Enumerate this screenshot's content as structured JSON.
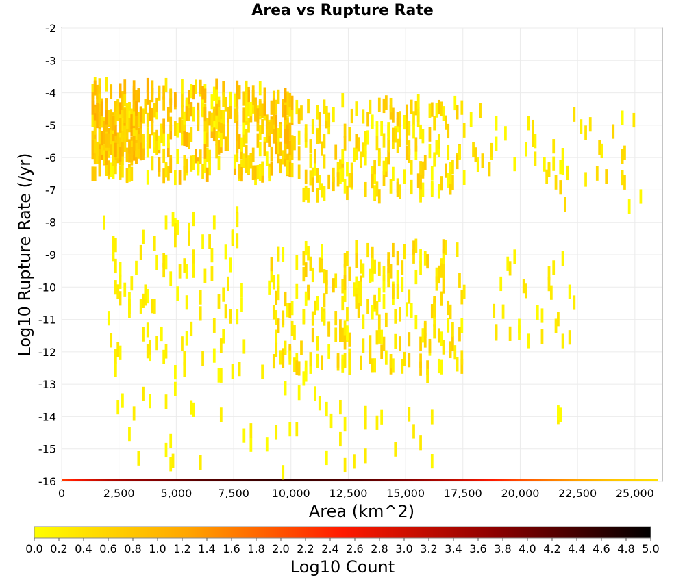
{
  "chart_data": {
    "type": "heatmap",
    "title": "Area vs Rupture Rate",
    "xlabel": "Area (km^2)",
    "ylabel": "Log10 Rupture Rate (/yr)",
    "xlim": [
      0,
      26200
    ],
    "ylim": [
      -16,
      -2
    ],
    "x_ticks": [
      0,
      2500,
      5000,
      7500,
      10000,
      12500,
      15000,
      17500,
      20000,
      22500,
      25000
    ],
    "x_tick_labels": [
      "0",
      "2,500",
      "5,000",
      "7,500",
      "10,000",
      "12,500",
      "15,000",
      "17,500",
      "20,000",
      "22,500",
      "25,000"
    ],
    "y_ticks": [
      -2,
      -3,
      -4,
      -5,
      -6,
      -7,
      -8,
      -9,
      -10,
      -11,
      -12,
      -13,
      -14,
      -15,
      -16
    ],
    "y_tick_labels": [
      "-2",
      "-3",
      "-4",
      "-5",
      "-6",
      "-7",
      "-8",
      "-9",
      "-10",
      "-11",
      "-12",
      "-13",
      "-14",
      "-15",
      "-16"
    ],
    "grid": true,
    "bin_width": 100,
    "bin_height": 0.14,
    "colorbar": {
      "label": "Log10 Count",
      "min": 0.0,
      "max": 5.0,
      "ticks": [
        "0.0",
        "0.2",
        "0.4",
        "0.6",
        "0.8",
        "1.0",
        "1.2",
        "1.4",
        "1.6",
        "1.8",
        "2.0",
        "2.2",
        "2.4",
        "2.6",
        "2.8",
        "3.0",
        "3.2",
        "3.4",
        "3.6",
        "3.8",
        "4.0",
        "4.2",
        "4.4",
        "4.6",
        "4.8",
        "5.0"
      ],
      "placement": "bottom",
      "colors": [
        "#ffff00",
        "#ffa500",
        "#ff0000",
        "#8b0000",
        "#000000"
      ]
    },
    "bottom_band": {
      "y": -16,
      "x_range": [
        0,
        26000
      ],
      "values": [
        [
          0,
          2.2
        ],
        [
          1000,
          2.8
        ],
        [
          2000,
          3.3
        ],
        [
          3000,
          3.6
        ],
        [
          4000,
          3.8
        ],
        [
          5000,
          4.0
        ],
        [
          6000,
          4.2
        ],
        [
          7000,
          4.3
        ],
        [
          8000,
          4.4
        ],
        [
          9000,
          4.5
        ],
        [
          10000,
          4.5
        ],
        [
          11000,
          4.4
        ],
        [
          12000,
          4.3
        ],
        [
          13000,
          4.2
        ],
        [
          14000,
          4.0
        ],
        [
          15000,
          3.8
        ],
        [
          16000,
          3.5
        ],
        [
          17000,
          3.2
        ],
        [
          18000,
          2.8
        ],
        [
          19000,
          2.4
        ],
        [
          20000,
          2.0
        ],
        [
          21000,
          1.7
        ],
        [
          22000,
          1.4
        ],
        [
          23000,
          1.1
        ],
        [
          24000,
          0.8
        ],
        [
          25000,
          0.6
        ],
        [
          26000,
          0.4
        ]
      ]
    },
    "clusters": [
      {
        "x": [
          1300,
          9000
        ],
        "y": [
          -6.4,
          -3.5
        ],
        "count": 360,
        "v": [
          0,
          1.1
        ]
      },
      {
        "x": [
          1300,
          3500
        ],
        "y": [
          -5.8,
          -4.2
        ],
        "count": 150,
        "v": [
          0.3,
          1.2
        ]
      },
      {
        "x": [
          9000,
          10000
        ],
        "y": [
          -6.2,
          -3.8
        ],
        "count": 70,
        "v": [
          0.2,
          1.1
        ]
      },
      {
        "x": [
          10000,
          17500
        ],
        "y": [
          -7.0,
          -4.0
        ],
        "count": 200,
        "v": [
          0,
          0.8
        ]
      },
      {
        "x": [
          17500,
          25200
        ],
        "y": [
          -7.3,
          -4.3
        ],
        "count": 50,
        "v": [
          0,
          0.6
        ]
      },
      {
        "x": [
          1800,
          8000
        ],
        "y": [
          -12.0,
          -7.5
        ],
        "count": 95,
        "v": [
          0,
          0.4
        ]
      },
      {
        "x": [
          9000,
          17500
        ],
        "y": [
          -12.3,
          -8.5
        ],
        "count": 240,
        "v": [
          0,
          0.7
        ]
      },
      {
        "x": [
          18500,
          22500
        ],
        "y": [
          -11.5,
          -8.8
        ],
        "count": 28,
        "v": [
          0,
          0.4
        ]
      },
      {
        "x": [
          2000,
          17000
        ],
        "y": [
          -15.5,
          -12.2
        ],
        "count": 60,
        "v": [
          0,
          0.3
        ]
      },
      {
        "x": [
          21500,
          22000
        ],
        "y": [
          -14.2,
          -13.6
        ],
        "count": 3,
        "v": [
          0,
          0.3
        ]
      }
    ],
    "seed": 7
  }
}
